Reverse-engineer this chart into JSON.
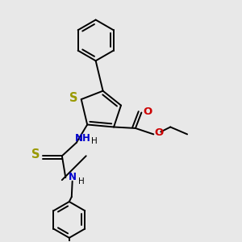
{
  "bg_color": "#e8e8e8",
  "bond_color": "#000000",
  "S_color": "#999900",
  "N_color": "#0000cc",
  "O_color": "#cc0000",
  "line_width": 1.4,
  "dbo": 0.015,
  "font_size": 8.5,
  "fig_size": [
    3.0,
    3.0
  ],
  "dpi": 100,
  "xlim": [
    0,
    10
  ],
  "ylim": [
    0,
    10
  ]
}
